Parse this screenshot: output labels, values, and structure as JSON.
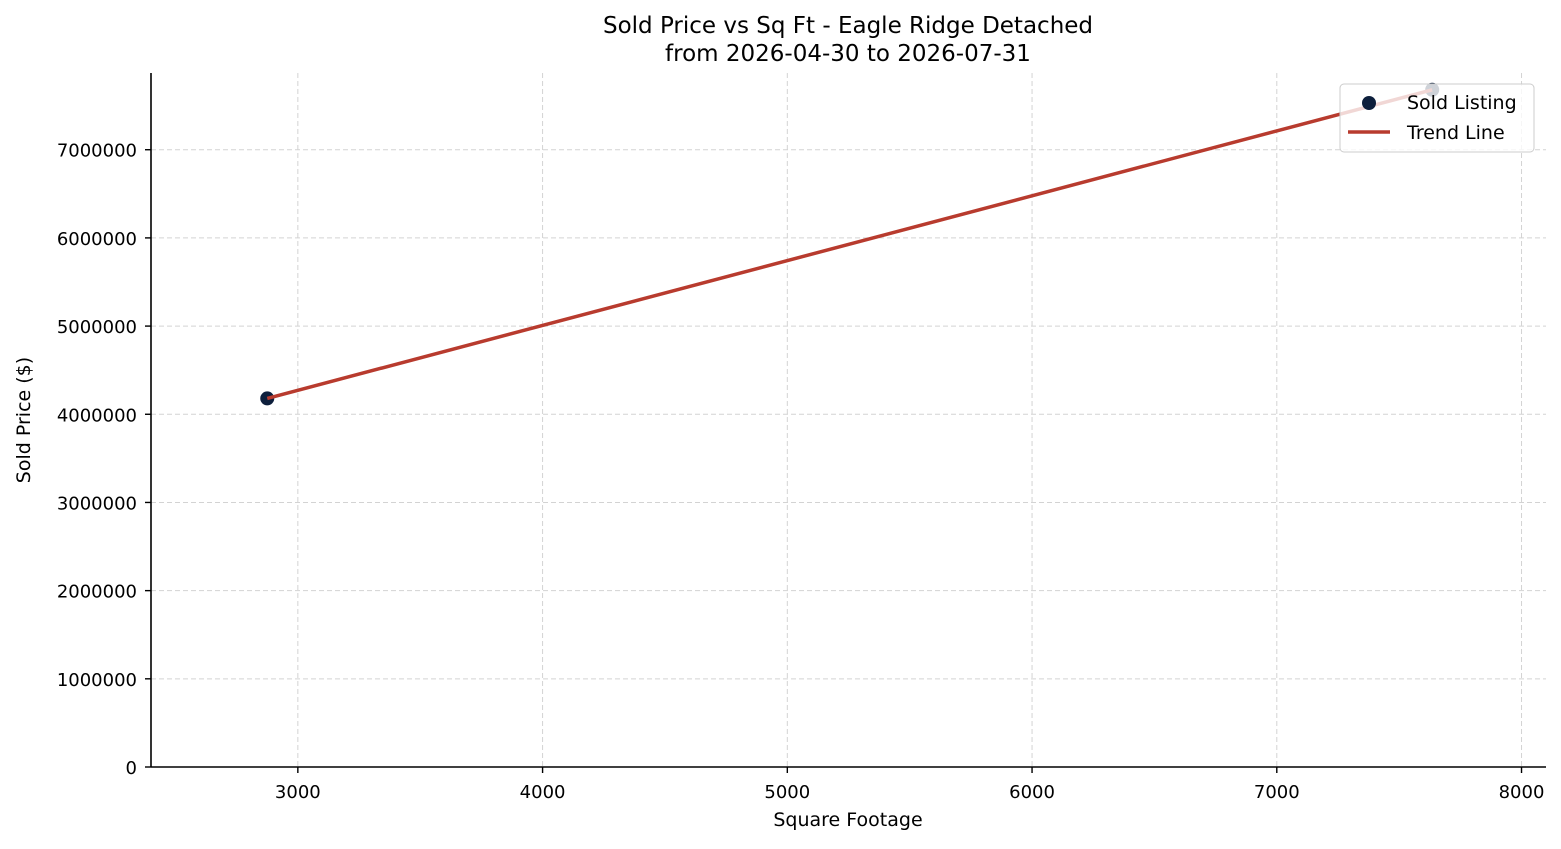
{
  "chart_data": {
    "type": "scatter",
    "title": "Sold Price vs Sq Ft - Eagle Ridge Detached",
    "subtitle": "from 2026-04-30 to 2026-07-31",
    "xlabel": "Square Footage",
    "ylabel": "Sold Price ($)",
    "xlim": [
      2400,
      8100
    ],
    "ylim": [
      0,
      7870000
    ],
    "x_ticks": [
      3000,
      4000,
      5000,
      6000,
      7000,
      8000
    ],
    "x_tick_labels": [
      "3000",
      "4000",
      "5000",
      "6000",
      "7000",
      "8000"
    ],
    "y_ticks": [
      0,
      1000000,
      2000000,
      3000000,
      4000000,
      5000000,
      6000000,
      7000000
    ],
    "y_tick_labels": [
      "0",
      "1000000",
      "2000000",
      "3000000",
      "4000000",
      "5000000",
      "6000000",
      "7000000"
    ],
    "grid": true,
    "legend_position": "top-right",
    "series": [
      {
        "name": "Sold Listing",
        "kind": "scatter",
        "color": "#0d1f3c",
        "x": [
          2875,
          7635
        ],
        "y": [
          4180000,
          7680000
        ]
      },
      {
        "name": "Trend Line",
        "kind": "line",
        "color": "#b83b2e",
        "x": [
          2875,
          7635
        ],
        "y": [
          4180000,
          7680000
        ]
      }
    ]
  }
}
